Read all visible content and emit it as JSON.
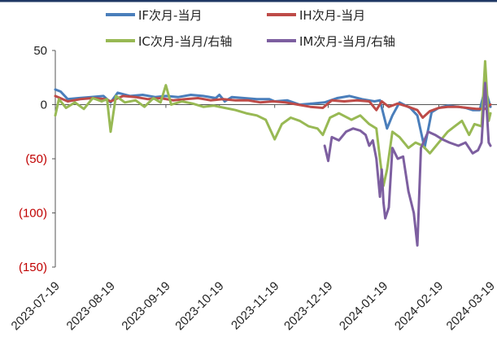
{
  "chart_data": {
    "type": "line",
    "title": "",
    "legend": {
      "placement": "top",
      "entries": [
        {
          "label": "IF次月-当月",
          "color": "#4a7ebb"
        },
        {
          "label": "IH次月-当月",
          "color": "#be4b48"
        },
        {
          "label": "IC次月-当月/右轴",
          "color": "#98b954"
        },
        {
          "label": "IM次月-当月/右轴",
          "color": "#7d5fa0"
        }
      ]
    },
    "y_axis": {
      "ylim": [
        -150,
        50
      ],
      "ticks": [
        {
          "value": 50,
          "label": "50",
          "color": "#222222"
        },
        {
          "value": 0,
          "label": "0",
          "color": "#222222"
        },
        {
          "value": -50,
          "label": "(50)",
          "color": "#c00000"
        },
        {
          "value": -100,
          "label": "(100)",
          "color": "#c00000"
        },
        {
          "value": -150,
          "label": "(150)",
          "color": "#c00000"
        }
      ]
    },
    "x_axis": {
      "xlim": [
        "2023-07-19",
        "2024-03-19"
      ],
      "ticks": [
        "2023-07-19",
        "2023-08-19",
        "2023-09-19",
        "2023-10-19",
        "2023-11-19",
        "2023-12-19",
        "2024-01-19",
        "2024-02-19",
        "2024-03-19"
      ]
    },
    "series": [
      {
        "name": "IF次月-当月",
        "color": "#4a7ebb",
        "points": [
          [
            "2023-07-19",
            14
          ],
          [
            "2023-07-22",
            12
          ],
          [
            "2023-07-26",
            5
          ],
          [
            "2023-08-01",
            6
          ],
          [
            "2023-08-08",
            7
          ],
          [
            "2023-08-15",
            8
          ],
          [
            "2023-08-19",
            2
          ],
          [
            "2023-08-23",
            11
          ],
          [
            "2023-08-30",
            8
          ],
          [
            "2023-09-06",
            9
          ],
          [
            "2023-09-13",
            7
          ],
          [
            "2023-09-19",
            8
          ],
          [
            "2023-09-26",
            7
          ],
          [
            "2023-10-03",
            9
          ],
          [
            "2023-10-10",
            8
          ],
          [
            "2023-10-17",
            6
          ],
          [
            "2023-10-19",
            9
          ],
          [
            "2023-10-22",
            3
          ],
          [
            "2023-10-26",
            7
          ],
          [
            "2023-11-02",
            6
          ],
          [
            "2023-11-09",
            5
          ],
          [
            "2023-11-16",
            5
          ],
          [
            "2023-11-19",
            3
          ],
          [
            "2023-11-26",
            4
          ],
          [
            "2023-12-03",
            0
          ],
          [
            "2023-12-10",
            1
          ],
          [
            "2023-12-17",
            2
          ],
          [
            "2023-12-24",
            6
          ],
          [
            "2023-12-31",
            8
          ],
          [
            "2024-01-07",
            5
          ],
          [
            "2024-01-14",
            3
          ],
          [
            "2024-01-17",
            4
          ],
          [
            "2024-01-21",
            -22
          ],
          [
            "2024-01-24",
            -10
          ],
          [
            "2024-01-28",
            2
          ],
          [
            "2024-02-03",
            -3
          ],
          [
            "2024-02-07",
            -10
          ],
          [
            "2024-02-11",
            -40
          ],
          [
            "2024-02-15",
            -7
          ],
          [
            "2024-02-19",
            -3
          ],
          [
            "2024-02-24",
            -1
          ],
          [
            "2024-03-01",
            -2
          ],
          [
            "2024-03-05",
            -3
          ],
          [
            "2024-03-09",
            -5
          ],
          [
            "2024-03-13",
            -5
          ],
          [
            "2024-03-16",
            15
          ],
          [
            "2024-03-19",
            -2
          ]
        ]
      },
      {
        "name": "IH次月-当月",
        "color": "#be4b48",
        "points": [
          [
            "2023-07-19",
            8
          ],
          [
            "2023-07-26",
            3
          ],
          [
            "2023-08-02",
            5
          ],
          [
            "2023-08-09",
            6
          ],
          [
            "2023-08-16",
            5
          ],
          [
            "2023-08-19",
            3
          ],
          [
            "2023-08-26",
            8
          ],
          [
            "2023-09-02",
            7
          ],
          [
            "2023-09-09",
            5
          ],
          [
            "2023-09-16",
            6
          ],
          [
            "2023-09-23",
            4
          ],
          [
            "2023-09-30",
            5
          ],
          [
            "2023-10-07",
            6
          ],
          [
            "2023-10-14",
            4
          ],
          [
            "2023-10-21",
            5
          ],
          [
            "2023-10-28",
            4
          ],
          [
            "2023-11-04",
            4
          ],
          [
            "2023-11-11",
            2
          ],
          [
            "2023-11-18",
            3
          ],
          [
            "2023-11-25",
            2
          ],
          [
            "2023-12-02",
            0
          ],
          [
            "2023-12-09",
            -2
          ],
          [
            "2023-12-16",
            -3
          ],
          [
            "2023-12-21",
            4
          ],
          [
            "2023-12-28",
            3
          ],
          [
            "2024-01-04",
            4
          ],
          [
            "2024-01-11",
            3
          ],
          [
            "2024-01-15",
            -5
          ],
          [
            "2024-01-18",
            3
          ],
          [
            "2024-01-22",
            -2
          ],
          [
            "2024-01-27",
            1
          ],
          [
            "2024-02-02",
            -2
          ],
          [
            "2024-02-07",
            -5
          ],
          [
            "2024-02-10",
            -12
          ],
          [
            "2024-02-14",
            -6
          ],
          [
            "2024-02-19",
            -3
          ],
          [
            "2024-02-24",
            -2
          ],
          [
            "2024-03-01",
            -2
          ],
          [
            "2024-03-06",
            -3
          ],
          [
            "2024-03-11",
            -4
          ],
          [
            "2024-03-16",
            -4
          ],
          [
            "2024-03-19",
            0
          ]
        ]
      },
      {
        "name": "IC次月-当月/右轴",
        "color": "#98b954",
        "points": [
          [
            "2023-07-19",
            -10
          ],
          [
            "2023-07-21",
            5
          ],
          [
            "2023-07-25",
            -3
          ],
          [
            "2023-07-30",
            2
          ],
          [
            "2023-08-04",
            -4
          ],
          [
            "2023-08-09",
            6
          ],
          [
            "2023-08-14",
            3
          ],
          [
            "2023-08-17",
            5
          ],
          [
            "2023-08-19",
            -25
          ],
          [
            "2023-08-22",
            8
          ],
          [
            "2023-08-27",
            2
          ],
          [
            "2023-09-02",
            4
          ],
          [
            "2023-09-07",
            -2
          ],
          [
            "2023-09-12",
            6
          ],
          [
            "2023-09-16",
            2
          ],
          [
            "2023-09-19",
            18
          ],
          [
            "2023-09-22",
            0
          ],
          [
            "2023-09-28",
            3
          ],
          [
            "2023-10-04",
            1
          ],
          [
            "2023-10-10",
            -2
          ],
          [
            "2023-10-16",
            -1
          ],
          [
            "2023-10-22",
            -3
          ],
          [
            "2023-10-28",
            -5
          ],
          [
            "2023-11-03",
            -8
          ],
          [
            "2023-11-09",
            -10
          ],
          [
            "2023-11-14",
            -14
          ],
          [
            "2023-11-19",
            -32
          ],
          [
            "2023-11-23",
            -18
          ],
          [
            "2023-11-28",
            -12
          ],
          [
            "2023-12-03",
            -15
          ],
          [
            "2023-12-08",
            -20
          ],
          [
            "2023-12-13",
            -22
          ],
          [
            "2023-12-16",
            -28
          ],
          [
            "2023-12-20",
            -12
          ],
          [
            "2023-12-25",
            -8
          ],
          [
            "2024-01-01",
            -14
          ],
          [
            "2024-01-06",
            -10
          ],
          [
            "2024-01-11",
            -18
          ],
          [
            "2024-01-15",
            -22
          ],
          [
            "2024-01-17",
            -50
          ],
          [
            "2024-01-19",
            -75
          ],
          [
            "2024-01-21",
            -60
          ],
          [
            "2024-01-24",
            -25
          ],
          [
            "2024-01-28",
            -30
          ],
          [
            "2024-02-02",
            -40
          ],
          [
            "2024-02-06",
            -35
          ],
          [
            "2024-02-10",
            -38
          ],
          [
            "2024-02-14",
            -45
          ],
          [
            "2024-02-19",
            -35
          ],
          [
            "2024-02-24",
            -25
          ],
          [
            "2024-02-28",
            -20
          ],
          [
            "2024-03-03",
            -15
          ],
          [
            "2024-03-07",
            -28
          ],
          [
            "2024-03-10",
            -18
          ],
          [
            "2024-03-14",
            -20
          ],
          [
            "2024-03-16",
            40
          ],
          [
            "2024-03-18",
            -15
          ],
          [
            "2024-03-19",
            -8
          ]
        ]
      },
      {
        "name": "IM次月-当月/右轴",
        "color": "#7d5fa0",
        "points": [
          [
            "2023-12-17",
            -38
          ],
          [
            "2023-12-19",
            -52
          ],
          [
            "2023-12-21",
            -30
          ],
          [
            "2023-12-25",
            -33
          ],
          [
            "2023-12-29",
            -25
          ],
          [
            "2024-01-02",
            -22
          ],
          [
            "2024-01-06",
            -24
          ],
          [
            "2024-01-09",
            -28
          ],
          [
            "2024-01-11",
            -38
          ],
          [
            "2024-01-13",
            -33
          ],
          [
            "2024-01-15",
            -50
          ],
          [
            "2024-01-17",
            -85
          ],
          [
            "2024-01-18",
            -60
          ],
          [
            "2024-01-19",
            -90
          ],
          [
            "2024-01-20",
            -105
          ],
          [
            "2024-01-22",
            -95
          ],
          [
            "2024-01-24",
            -40
          ],
          [
            "2024-01-27",
            -50
          ],
          [
            "2024-01-30",
            -48
          ],
          [
            "2024-02-02",
            -80
          ],
          [
            "2024-02-05",
            -100
          ],
          [
            "2024-02-07",
            -130
          ],
          [
            "2024-02-09",
            -40
          ],
          [
            "2024-02-13",
            -25
          ],
          [
            "2024-02-17",
            -28
          ],
          [
            "2024-02-21",
            -32
          ],
          [
            "2024-02-25",
            -35
          ],
          [
            "2024-03-01",
            -38
          ],
          [
            "2024-03-05",
            -35
          ],
          [
            "2024-03-09",
            -45
          ],
          [
            "2024-03-12",
            -42
          ],
          [
            "2024-03-14",
            -35
          ],
          [
            "2024-03-16",
            20
          ],
          [
            "2024-03-18",
            -35
          ],
          [
            "2024-03-19",
            -38
          ]
        ]
      }
    ]
  }
}
